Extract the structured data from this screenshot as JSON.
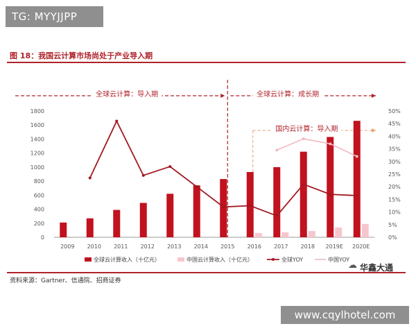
{
  "header": {
    "tg_handle": "TG: MYYJJPP"
  },
  "figure": {
    "title": "图 18：我国云计算市场尚处于产业导入期",
    "source": "资料来源：Gartner、信通院、招商证券",
    "brand": "华鑫大通",
    "watermark": "www.cqylhotel.com"
  },
  "colors": {
    "accent": "#b0222a",
    "global_bar": "#c1121f",
    "china_bar": "#f7c6cd",
    "global_line": "#a3171f",
    "china_line": "#f2b8c0"
  },
  "chart_data": {
    "type": "bar",
    "categories": [
      "2009",
      "2010",
      "2011",
      "2012",
      "2013",
      "2014",
      "2015",
      "2016",
      "2017",
      "2018",
      "2019E",
      "2020E"
    ],
    "series": [
      {
        "name": "全球云计算收入（十亿元）",
        "kind": "bar",
        "axis": "left",
        "values": [
          210,
          270,
          390,
          490,
          620,
          740,
          830,
          930,
          1000,
          1220,
          1430,
          1660
        ]
      },
      {
        "name": "中国云计算收入（十亿元）",
        "kind": "bar",
        "axis": "left",
        "values": [
          null,
          null,
          null,
          null,
          null,
          null,
          null,
          60,
          70,
          90,
          140,
          190
        ]
      },
      {
        "name": "全球YOY",
        "kind": "line",
        "axis": "right",
        "values": [
          null,
          23.5,
          46,
          24.5,
          28,
          20,
          12,
          12.5,
          8.5,
          21,
          17,
          16.5
        ]
      },
      {
        "name": "中国YOY",
        "kind": "line",
        "axis": "right",
        "values": [
          null,
          null,
          null,
          null,
          null,
          null,
          null,
          null,
          34.5,
          39,
          37,
          32
        ]
      }
    ],
    "yaxis_left": {
      "min": 0,
      "max": 1800,
      "ticks": [
        0,
        200,
        400,
        600,
        800,
        1000,
        1200,
        1400,
        1600,
        1800
      ]
    },
    "yaxis_right": {
      "min": 0,
      "max": 50,
      "ticks": [
        "0%",
        "5%",
        "10%",
        "15%",
        "20%",
        "25%",
        "30%",
        "35%",
        "40%",
        "45%",
        "50%"
      ]
    },
    "phases": [
      {
        "label": "全球云计算：导入期",
        "from": "2009",
        "to": "2015"
      },
      {
        "label": "全球云计算：成长期",
        "from": "2015",
        "to": "2020E"
      },
      {
        "label": "国内云计算：导入期",
        "from": "2016",
        "to": "2020E"
      }
    ],
    "legend_position": "bottom"
  }
}
